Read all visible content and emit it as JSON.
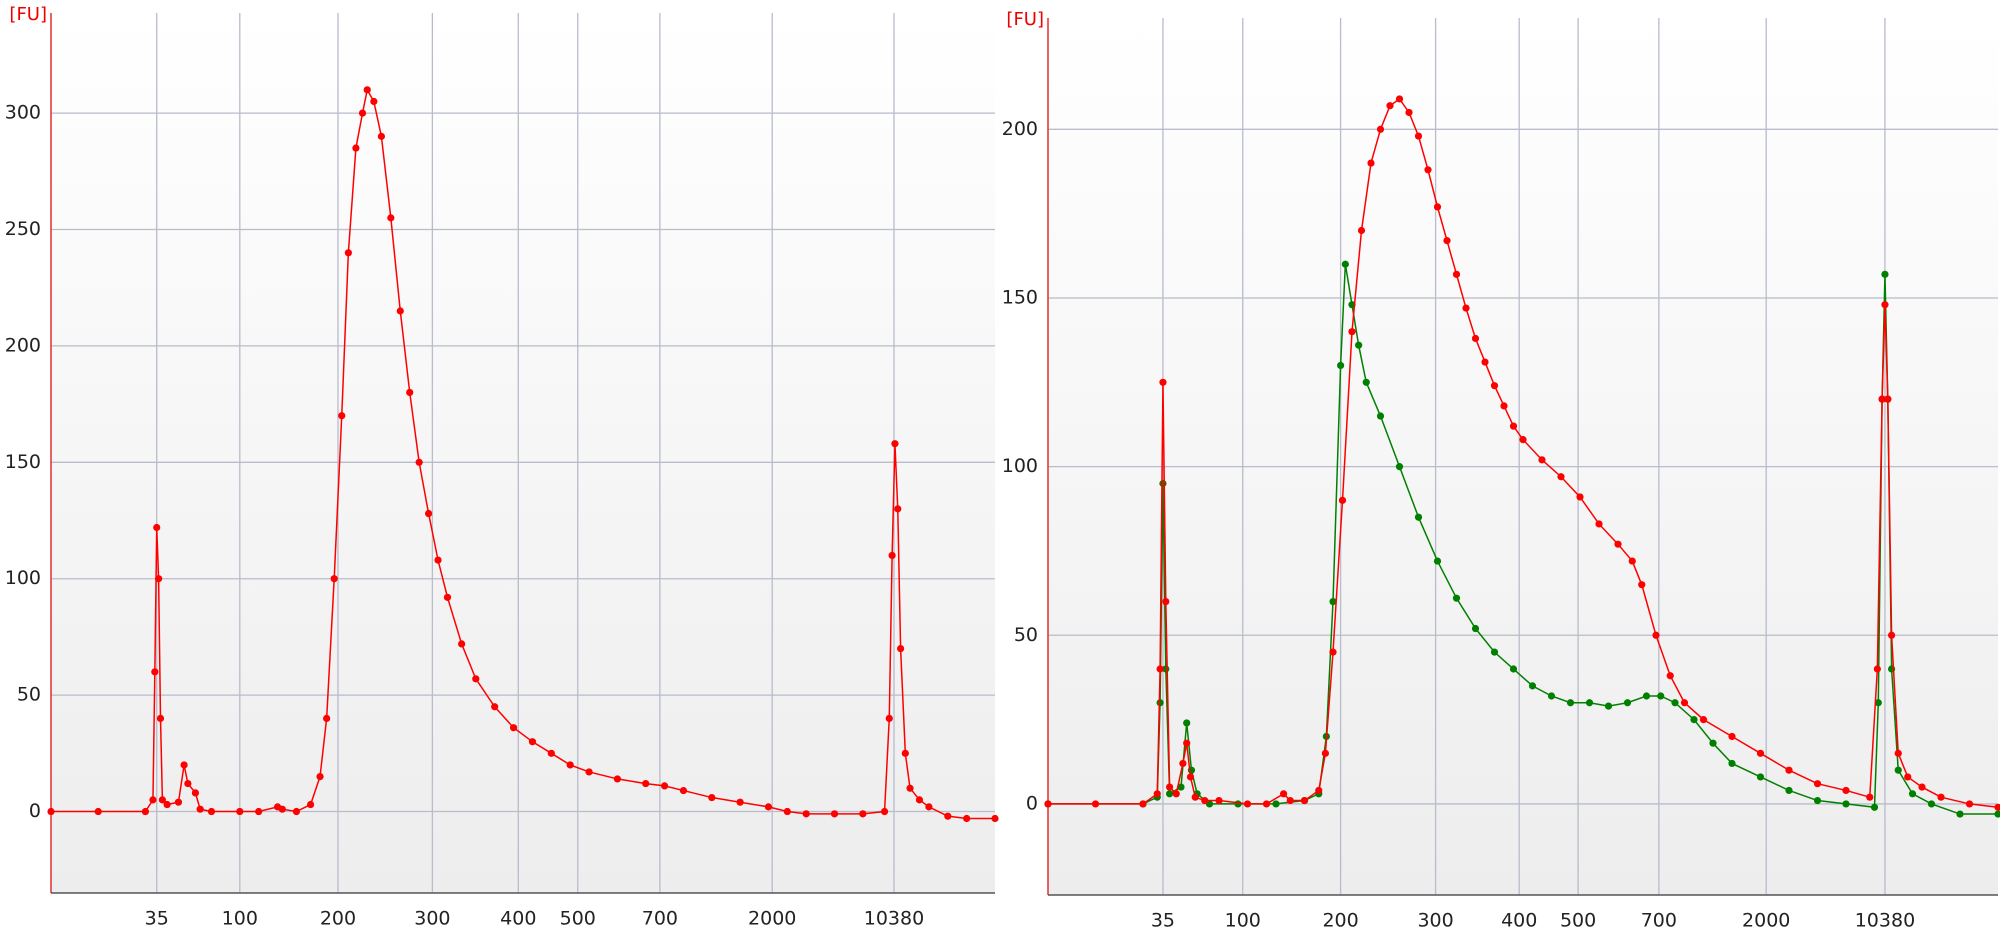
{
  "chart_data": [
    {
      "type": "line",
      "y_unit": "[FU]",
      "grid": true,
      "xlim": [
        0,
        100
      ],
      "ylim": [
        -35,
        343
      ],
      "xticks": [
        {
          "value": 11.2,
          "label": "35"
        },
        {
          "value": 20.0,
          "label": "100"
        },
        {
          "value": 30.4,
          "label": "200"
        },
        {
          "value": 40.4,
          "label": "300"
        },
        {
          "value": 49.5,
          "label": "400"
        },
        {
          "value": 55.8,
          "label": "500"
        },
        {
          "value": 64.5,
          "label": "700"
        },
        {
          "value": 76.4,
          "label": "2000"
        },
        {
          "value": 89.3,
          "label": "10380"
        }
      ],
      "yticks": [
        0,
        50,
        100,
        150,
        200,
        250,
        300
      ],
      "series": [
        {
          "color": "#ff0000",
          "x": [
            0,
            5,
            10,
            10.8,
            11.0,
            11.2,
            11.4,
            11.6,
            11.8,
            12.3,
            13.5,
            14.1,
            14.5,
            15.3,
            15.8,
            17,
            20,
            22,
            24.0,
            24.5,
            26,
            27.5,
            28.5,
            29.2,
            30,
            30.8,
            31.5,
            32.3,
            33,
            33.5,
            34.2,
            35,
            36,
            37,
            38,
            39,
            40,
            41,
            42,
            43.5,
            45,
            47,
            49,
            51,
            53,
            55,
            57,
            60,
            63,
            65,
            67,
            70,
            73,
            76,
            78,
            80,
            83,
            86,
            88.3,
            88.8,
            89.1,
            89.4,
            89.7,
            90,
            90.5,
            91,
            92,
            93,
            95,
            97,
            100
          ],
          "values": [
            0,
            0,
            0,
            5,
            60,
            122,
            100,
            40,
            5,
            3,
            4,
            20,
            12,
            8,
            1,
            0,
            0,
            0,
            2,
            1,
            0,
            3,
            15,
            40,
            100,
            170,
            240,
            285,
            300,
            310,
            305,
            290,
            255,
            215,
            180,
            150,
            128,
            108,
            92,
            72,
            57,
            45,
            36,
            30,
            25,
            20,
            17,
            14,
            12,
            11,
            9,
            6,
            4,
            2,
            0,
            -1,
            -1,
            -1,
            0,
            40,
            110,
            158,
            130,
            70,
            25,
            10,
            5,
            2,
            -2,
            -3,
            -3
          ]
        }
      ]
    },
    {
      "type": "line",
      "y_unit": "[FU]",
      "grid": true,
      "xlim": [
        0,
        100
      ],
      "ylim": [
        -27,
        233
      ],
      "xticks": [
        {
          "value": 12.1,
          "label": "35"
        },
        {
          "value": 20.5,
          "label": "100"
        },
        {
          "value": 30.8,
          "label": "200"
        },
        {
          "value": 40.8,
          "label": "300"
        },
        {
          "value": 49.6,
          "label": "400"
        },
        {
          "value": 55.8,
          "label": "500"
        },
        {
          "value": 64.3,
          "label": "700"
        },
        {
          "value": 75.6,
          "label": "2000"
        },
        {
          "value": 88.1,
          "label": "10380"
        }
      ],
      "yticks": [
        0,
        50,
        100,
        150,
        200
      ],
      "series": [
        {
          "color": "#008000",
          "x": [
            0,
            10,
            11.5,
            11.8,
            12.1,
            12.4,
            12.8,
            14,
            14.6,
            15.1,
            15.7,
            17,
            20,
            24,
            27,
            28.5,
            29.3,
            30,
            30.8,
            31.3,
            32,
            32.7,
            33.5,
            35,
            37,
            39,
            41,
            43,
            45,
            47,
            49,
            51,
            53,
            55,
            57,
            59,
            61,
            63,
            64.5,
            66,
            68,
            70,
            72,
            75,
            78,
            81,
            84,
            87,
            87.4,
            87.8,
            88.1,
            88.4,
            88.8,
            89.5,
            91,
            93,
            96,
            100
          ],
          "values": [
            0,
            0,
            2,
            30,
            95,
            40,
            3,
            5,
            24,
            10,
            3,
            0,
            0,
            0,
            1,
            3,
            20,
            60,
            130,
            160,
            148,
            136,
            125,
            115,
            100,
            85,
            72,
            61,
            52,
            45,
            40,
            35,
            32,
            30,
            30,
            29,
            30,
            32,
            32,
            30,
            25,
            18,
            12,
            8,
            4,
            1,
            0,
            -1,
            30,
            120,
            157,
            120,
            40,
            10,
            3,
            0,
            -3,
            -3
          ]
        },
        {
          "color": "#ff0000",
          "x": [
            0,
            5,
            10,
            11.5,
            11.8,
            12.1,
            12.4,
            12.8,
            13.5,
            14.2,
            14.6,
            15,
            15.5,
            16.5,
            18,
            21,
            23,
            24.8,
            25.5,
            27,
            28.5,
            29.2,
            30,
            31,
            32,
            33,
            34,
            35,
            36,
            37,
            38,
            39,
            40,
            41,
            42,
            43,
            44,
            45,
            46,
            47,
            48,
            49,
            50,
            52,
            54,
            56,
            58,
            60,
            61.5,
            62.5,
            64,
            65.5,
            67,
            69,
            72,
            75,
            78,
            81,
            84,
            86.5,
            87.3,
            87.8,
            88.1,
            88.4,
            88.8,
            89.5,
            90.5,
            92,
            94,
            97,
            100
          ],
          "values": [
            0,
            0,
            0,
            3,
            40,
            125,
            60,
            5,
            3,
            12,
            18,
            8,
            2,
            1,
            1,
            0,
            0,
            3,
            1,
            1,
            4,
            15,
            45,
            90,
            140,
            170,
            190,
            200,
            207,
            209,
            205,
            198,
            188,
            177,
            167,
            157,
            147,
            138,
            131,
            124,
            118,
            112,
            108,
            102,
            97,
            91,
            83,
            77,
            72,
            65,
            50,
            38,
            30,
            25,
            20,
            15,
            10,
            6,
            4,
            2,
            40,
            120,
            148,
            120,
            50,
            15,
            8,
            5,
            2,
            0,
            -1
          ]
        }
      ]
    }
  ]
}
